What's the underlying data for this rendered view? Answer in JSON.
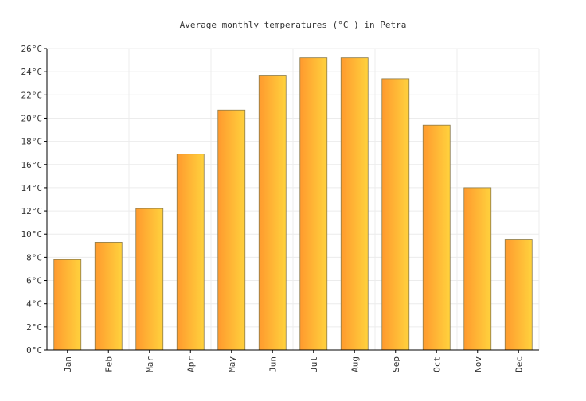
{
  "chart_data": {
    "type": "bar",
    "title": "Average monthly temperatures (°C ) in Petra",
    "categories": [
      "Jan",
      "Feb",
      "Mar",
      "Apr",
      "May",
      "Jun",
      "Jul",
      "Aug",
      "Sep",
      "Oct",
      "Nov",
      "Dec"
    ],
    "series": [
      {
        "values": [
          7.8,
          9.3,
          12.2,
          16.9,
          20.7,
          23.7,
          25.2,
          25.2,
          23.4,
          19.4,
          14.0,
          9.5
        ]
      }
    ],
    "ylim": [
      0,
      26
    ],
    "yticks": [
      "0°C",
      "2°C",
      "4°C",
      "6°C",
      "8°C",
      "10°C",
      "12°C",
      "14°C",
      "16°C",
      "18°C",
      "20°C",
      "22°C",
      "24°C",
      "26°C"
    ],
    "grid": true,
    "legend": "none",
    "colors": {
      "bar_left": "#ff9a2e",
      "bar_right": "#ffd23d",
      "bar_stroke": "#8a7a4a",
      "grid": "#ececec",
      "axis": "#000000",
      "text": "#333333"
    }
  }
}
